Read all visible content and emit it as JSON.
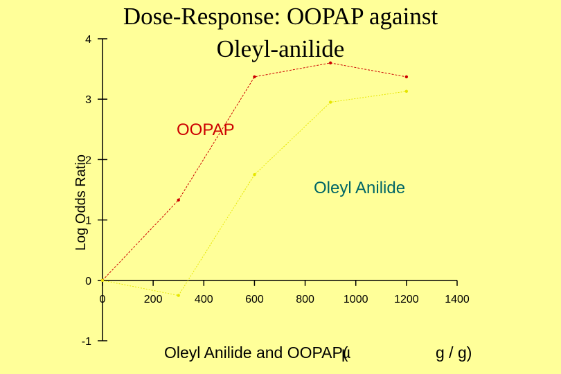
{
  "chart_data": {
    "type": "line",
    "title": [
      "Dose-Response: OOPAP against",
      "Oleyl-anilide"
    ],
    "ylabel": "Log Odds Ratio",
    "xlabel_parts": [
      "Oleyl Anilide and OOPAP(",
      "g / g)"
    ],
    "xlabel_overlap": "µ",
    "xlim": [
      0,
      1400
    ],
    "ylim": [
      -1,
      4
    ],
    "x_ticks": [
      "0",
      "200",
      "400",
      "600",
      "800",
      "1000",
      "1200",
      "1400"
    ],
    "y_ticks": [
      "-1",
      "0",
      "1",
      "2",
      "3",
      "4"
    ],
    "x_tick_values": [
      0,
      200,
      400,
      600,
      800,
      1000,
      1200,
      1400
    ],
    "y_tick_values": [
      -1,
      0,
      1,
      2,
      3,
      4
    ],
    "grid": false,
    "series": [
      {
        "name": "OOPAP",
        "color": "#cc0000",
        "x": [
          0,
          300,
          600,
          900,
          1200
        ],
        "y": [
          0,
          1.33,
          3.37,
          3.6,
          3.37
        ]
      },
      {
        "name": "Oleyl Anilide",
        "color": "#e6e600",
        "x": [
          0,
          300,
          600,
          900,
          1200
        ],
        "y": [
          0,
          -0.25,
          1.75,
          2.95,
          3.13
        ]
      }
    ]
  }
}
